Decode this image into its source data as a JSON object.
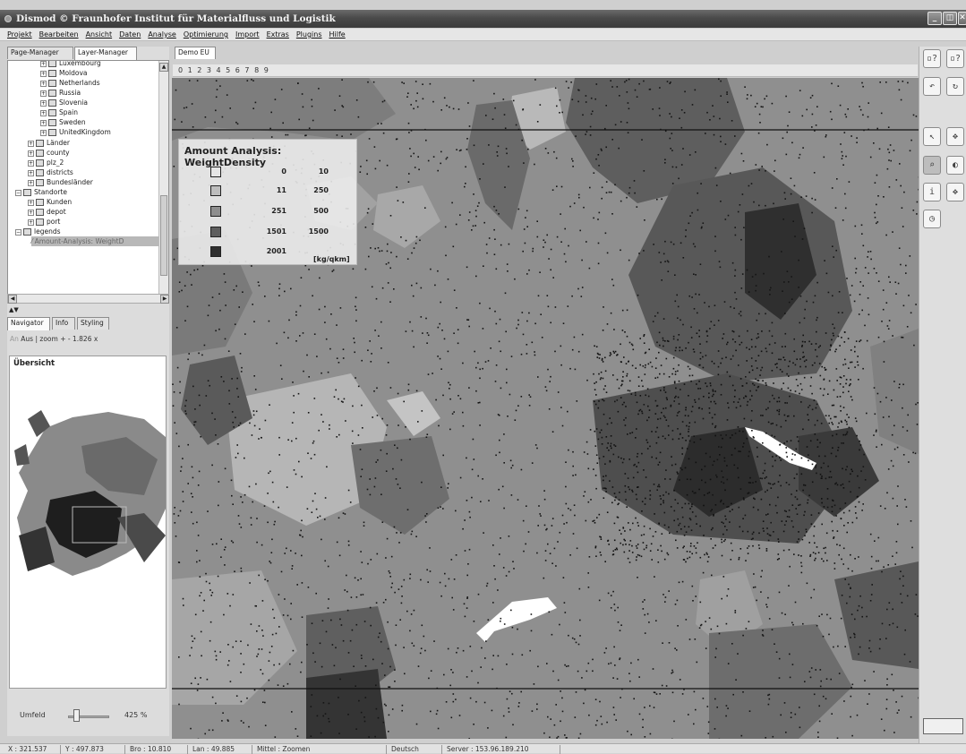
{
  "window": {
    "title": "Dismod © Fraunhofer Institut für Materialfluss und Logistik",
    "buttons": {
      "minimize": "_",
      "restore": "◫",
      "close": "✕"
    }
  },
  "menu": [
    "Projekt",
    "Bearbeiten",
    "Ansicht",
    "Daten",
    "Analyse",
    "Optimierung",
    "Import",
    "Extras",
    "Plugins",
    "Hilfe"
  ],
  "left_tabs": {
    "page_manager": "Page-Manager",
    "layer_manager": "Layer-Manager"
  },
  "tree": [
    {
      "label": "Luxembourg"
    },
    {
      "label": "Moldova"
    },
    {
      "label": "Netherlands"
    },
    {
      "label": "Russia"
    },
    {
      "label": "Slovenia"
    },
    {
      "label": "Spain"
    },
    {
      "label": "Sweden"
    },
    {
      "label": "UnitedKingdom"
    },
    {
      "label": "Länder"
    },
    {
      "label": "county"
    },
    {
      "label": "plz_2"
    },
    {
      "label": "districts"
    },
    {
      "label": "Bundesländer"
    },
    {
      "label": "Standorte"
    },
    {
      "label": "Kunden"
    },
    {
      "label": "depot"
    },
    {
      "label": "port"
    },
    {
      "label": "legends"
    },
    {
      "label": "Amount-Analysis: WeightD"
    }
  ],
  "nav_tabs": {
    "navigator": "Navigator",
    "info": "Info",
    "styling": "Styling"
  },
  "navigator": {
    "an": "An",
    "aus": "Aus",
    "zoom": "| zoom",
    "plus": "+",
    "minus": "-",
    "zoom_value": "1.826 x"
  },
  "overview_title": "Übersicht",
  "umfeld": {
    "label": "Umfeld",
    "value": "425 %",
    "level": 0.2
  },
  "doc_tab": "Demo EU",
  "numbar": "0 1 2 3 4 5 6 7 8 9",
  "legend": {
    "title": "Amount Analysis: WeightDensity",
    "rows": [
      {
        "lo": "0",
        "hi": "10",
        "color": "#e6e6e6"
      },
      {
        "lo": "11",
        "hi": "250",
        "color": "#bdbdbd"
      },
      {
        "lo": "251",
        "hi": "500",
        "color": "#8e8e8e"
      },
      {
        "lo": "1501",
        "hi": "1500",
        "color": "#5e5e5e"
      },
      {
        "lo": "2001",
        "hi": "",
        "color": "#2f2f2f"
      }
    ],
    "unit": "[kg/qkm]"
  },
  "toolbar_icons": [
    "zoom-layer-icon",
    "zoom-layer-icon",
    "zoom-back-icon",
    "refresh-icon",
    "pointer-icon",
    "pan-icon",
    "zoom-icon",
    "zoom-out-icon",
    "info-icon",
    "select-icon",
    "clock-icon"
  ],
  "status": {
    "x": "X : 321.537",
    "y": "Y : 497.873",
    "bro": "Bro : 10.810",
    "lan": "Lan : 49.885",
    "mittel": "Mittel : Zoomen",
    "lang": "Deutsch",
    "server": "Server : 153.96.189.210"
  }
}
